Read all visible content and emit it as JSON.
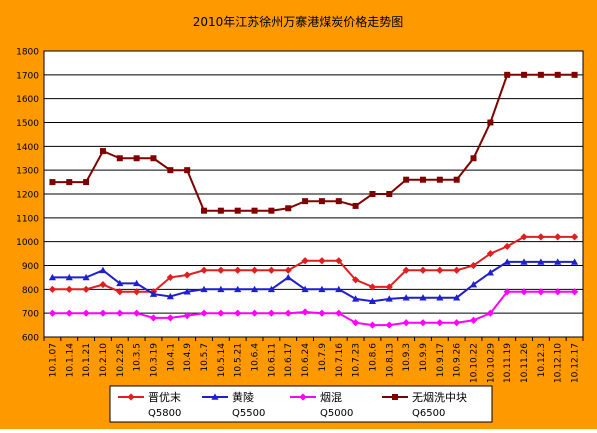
{
  "chart_data": {
    "type": "line",
    "title": "2010年江苏徐州万寨港煤炭价格走势图",
    "xlabel": "",
    "ylabel": "",
    "ylim": [
      600,
      1800
    ],
    "y_ticks": [
      600,
      700,
      800,
      900,
      1000,
      1100,
      1200,
      1300,
      1400,
      1500,
      1600,
      1700,
      1800
    ],
    "grid": true,
    "legend_position": "bottom",
    "categories": [
      "10.1.07",
      "10.1.14",
      "10.1.21",
      "10.2.10",
      "10.2.25",
      "10.3.5",
      "10.3.19",
      "10.4.1",
      "10.4.9",
      "10.5.7",
      "10.5.14",
      "10.5.21",
      "10.6.4",
      "10.6.11",
      "10.6.17",
      "10.6.24",
      "10.7.9",
      "10.7.16",
      "10.7.23",
      "10.8.6",
      "10.8.13",
      "10.9.3",
      "10.9.9",
      "10.9.17",
      "10.9.26",
      "10.10.22",
      "10.10.29",
      "10.11.19",
      "10.11.26",
      "10.12.3",
      "10.12.10",
      "10.12.17"
    ],
    "series": [
      {
        "name": "晋优末",
        "sub": "Q5800",
        "color": "#e02020",
        "marker": "diamond",
        "values": [
          800,
          800,
          800,
          820,
          790,
          790,
          790,
          850,
          860,
          880,
          880,
          880,
          880,
          880,
          880,
          920,
          920,
          920,
          840,
          810,
          810,
          880,
          880,
          880,
          880,
          900,
          950,
          980,
          1020,
          1020,
          1020,
          1020
        ]
      },
      {
        "name": "黄陵",
        "sub": "Q5500",
        "color": "#1f1fcf",
        "marker": "triangle",
        "values": [
          850,
          850,
          850,
          880,
          825,
          825,
          780,
          770,
          790,
          800,
          800,
          800,
          800,
          800,
          850,
          800,
          800,
          800,
          760,
          750,
          760,
          765,
          765,
          765,
          765,
          820,
          870,
          915,
          915,
          915,
          915,
          915
        ]
      },
      {
        "name": "烟混",
        "sub": "Q5000",
        "color": "#ff00ff",
        "marker": "diamond",
        "values": [
          700,
          700,
          700,
          700,
          700,
          700,
          680,
          680,
          690,
          700,
          700,
          700,
          700,
          700,
          700,
          705,
          700,
          700,
          660,
          650,
          650,
          660,
          660,
          660,
          660,
          670,
          700,
          790,
          790,
          790,
          790,
          790
        ]
      },
      {
        "name": "无烟洗中块",
        "sub": "Q6500",
        "color": "#800000",
        "marker": "square",
        "values": [
          1250,
          1250,
          1250,
          1380,
          1350,
          1350,
          1350,
          1300,
          1300,
          1130,
          1130,
          1130,
          1130,
          1130,
          1140,
          1170,
          1170,
          1170,
          1150,
          1200,
          1200,
          1260,
          1260,
          1260,
          1260,
          1350,
          1500,
          1700,
          1700,
          1700,
          1700,
          1700
        ]
      }
    ]
  },
  "colors": {
    "frame_background": "#ff9900",
    "plot_background": "#ffffff",
    "gridline": "#000000"
  }
}
